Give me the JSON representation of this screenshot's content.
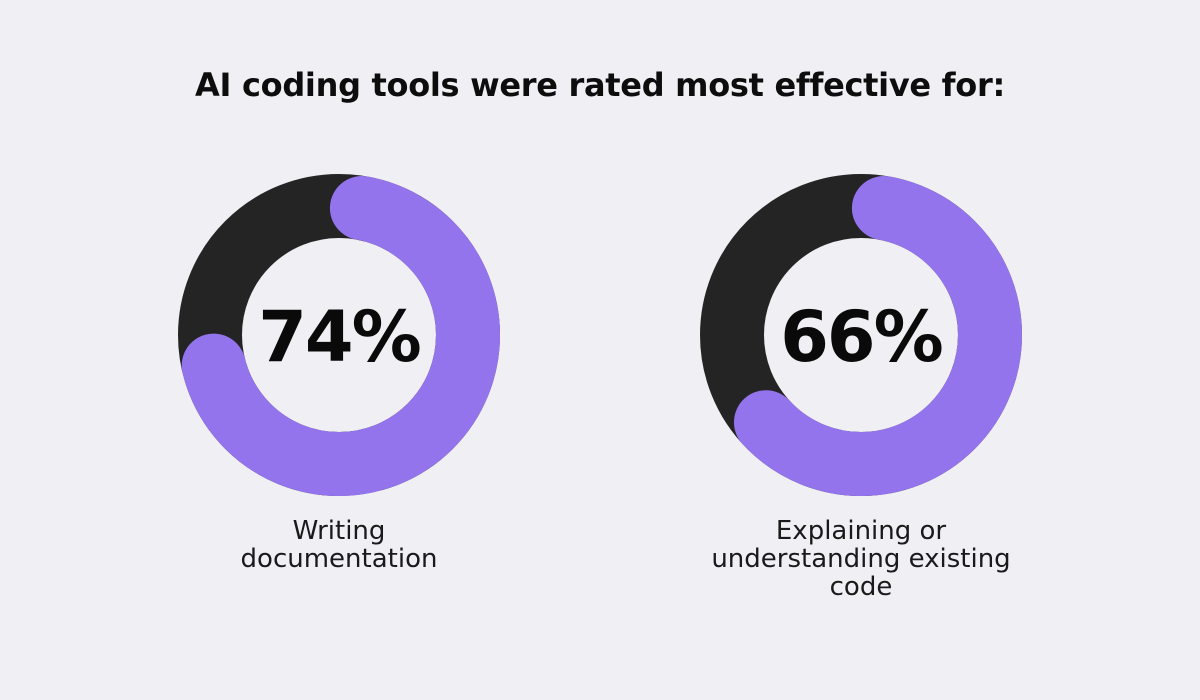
{
  "title": "AI coding tools were rated most effective for:",
  "colors": {
    "background": "#f0eff4",
    "filled": "#9374ec",
    "remainder": "#242424",
    "hole": "#f0eff4"
  },
  "chart_data": [
    {
      "type": "pie",
      "style": "donut",
      "title": "AI coding tools were rated most effective for:",
      "value": 74,
      "value_label": "74%",
      "label_lines": [
        "Writing",
        "documentation"
      ],
      "max": 100
    },
    {
      "type": "pie",
      "style": "donut",
      "title": "AI coding tools were rated most effective for:",
      "value": 66,
      "value_label": "66%",
      "label_lines": [
        "Explaining or",
        "understanding existing",
        "code"
      ],
      "max": 100
    }
  ]
}
